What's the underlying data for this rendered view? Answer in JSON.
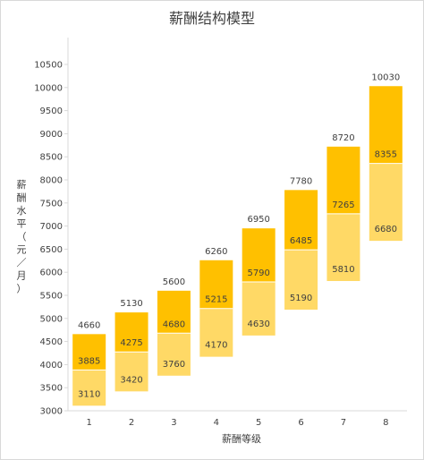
{
  "chart_data": {
    "type": "bar",
    "title": "薪酬结构模型",
    "xlabel": "薪酬等级",
    "ylabel": "薪酬水平（元／月）",
    "ylim": [
      3000,
      10500
    ],
    "yticks": [
      3000,
      3500,
      4000,
      4500,
      5000,
      5500,
      6000,
      6500,
      7000,
      7500,
      8000,
      8500,
      9000,
      9500,
      10000,
      10500
    ],
    "categories": [
      "1",
      "2",
      "3",
      "4",
      "5",
      "6",
      "7",
      "8"
    ],
    "min": [
      3110,
      3420,
      3760,
      4170,
      4630,
      5190,
      5810,
      6680
    ],
    "mid": [
      3885,
      4275,
      4680,
      5215,
      5790,
      6485,
      7265,
      8355
    ],
    "max": [
      4660,
      5130,
      5600,
      6260,
      6950,
      7780,
      8720,
      10030
    ],
    "colors": {
      "lower": "#FFD966",
      "upper": "#FFC000",
      "axis": "#d9d9d9",
      "text": "#404040"
    }
  }
}
